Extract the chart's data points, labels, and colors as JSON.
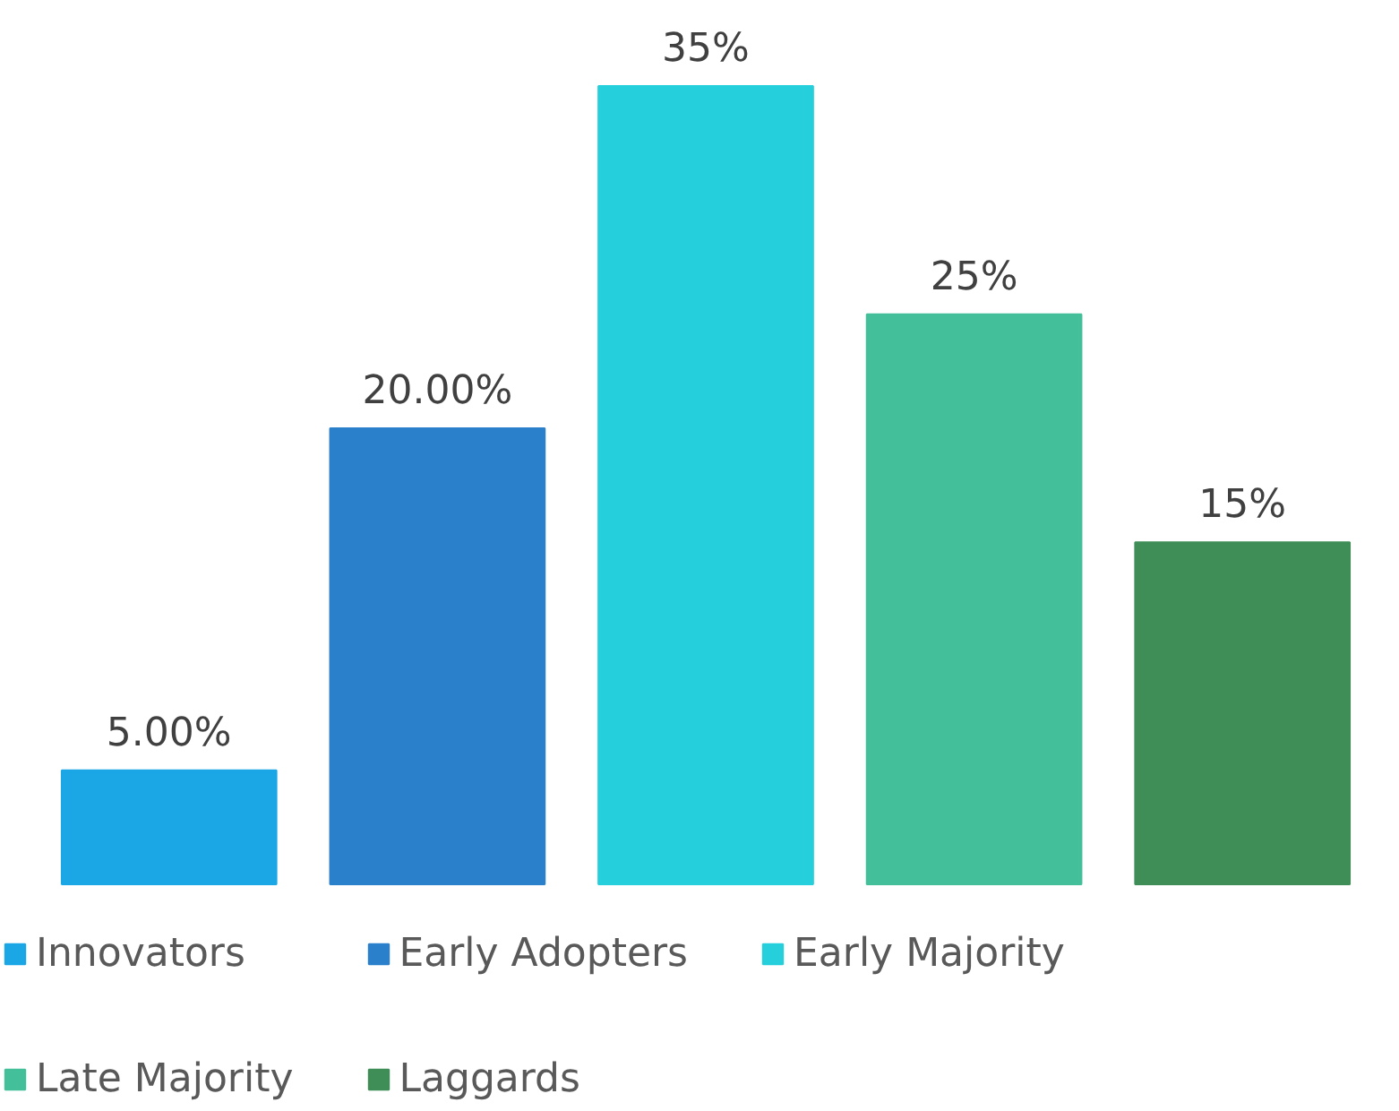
{
  "chart_data": {
    "type": "bar",
    "stacked": true,
    "categories": [
      null,
      null,
      null,
      null,
      null
    ],
    "series": [
      {
        "name": "Innovators",
        "color": "#1ba6e6",
        "values": [
          5,
          null,
          null,
          null,
          null
        ],
        "value_labels": [
          "5.00%",
          null,
          null,
          null,
          null
        ]
      },
      {
        "name": "Early Adopters",
        "color": "#2b80cc",
        "values": [
          null,
          20,
          null,
          null,
          null
        ],
        "value_labels": [
          null,
          "20.00%",
          null,
          null,
          null
        ]
      },
      {
        "name": "Early Majority",
        "color": "#25cfdc",
        "values": [
          null,
          null,
          35,
          null,
          null
        ],
        "value_labels": [
          null,
          null,
          "35%",
          null,
          null
        ]
      },
      {
        "name": "Late Majority",
        "color": "#43bf99",
        "values": [
          null,
          null,
          null,
          25,
          null
        ],
        "value_labels": [
          null,
          null,
          null,
          "25%",
          null
        ]
      },
      {
        "name": "Laggards",
        "color": "#3f8d57",
        "values": [
          null,
          null,
          null,
          null,
          15
        ],
        "value_labels": [
          null,
          null,
          null,
          null,
          "15%"
        ]
      }
    ],
    "legend": "bottom",
    "grid": false
  }
}
